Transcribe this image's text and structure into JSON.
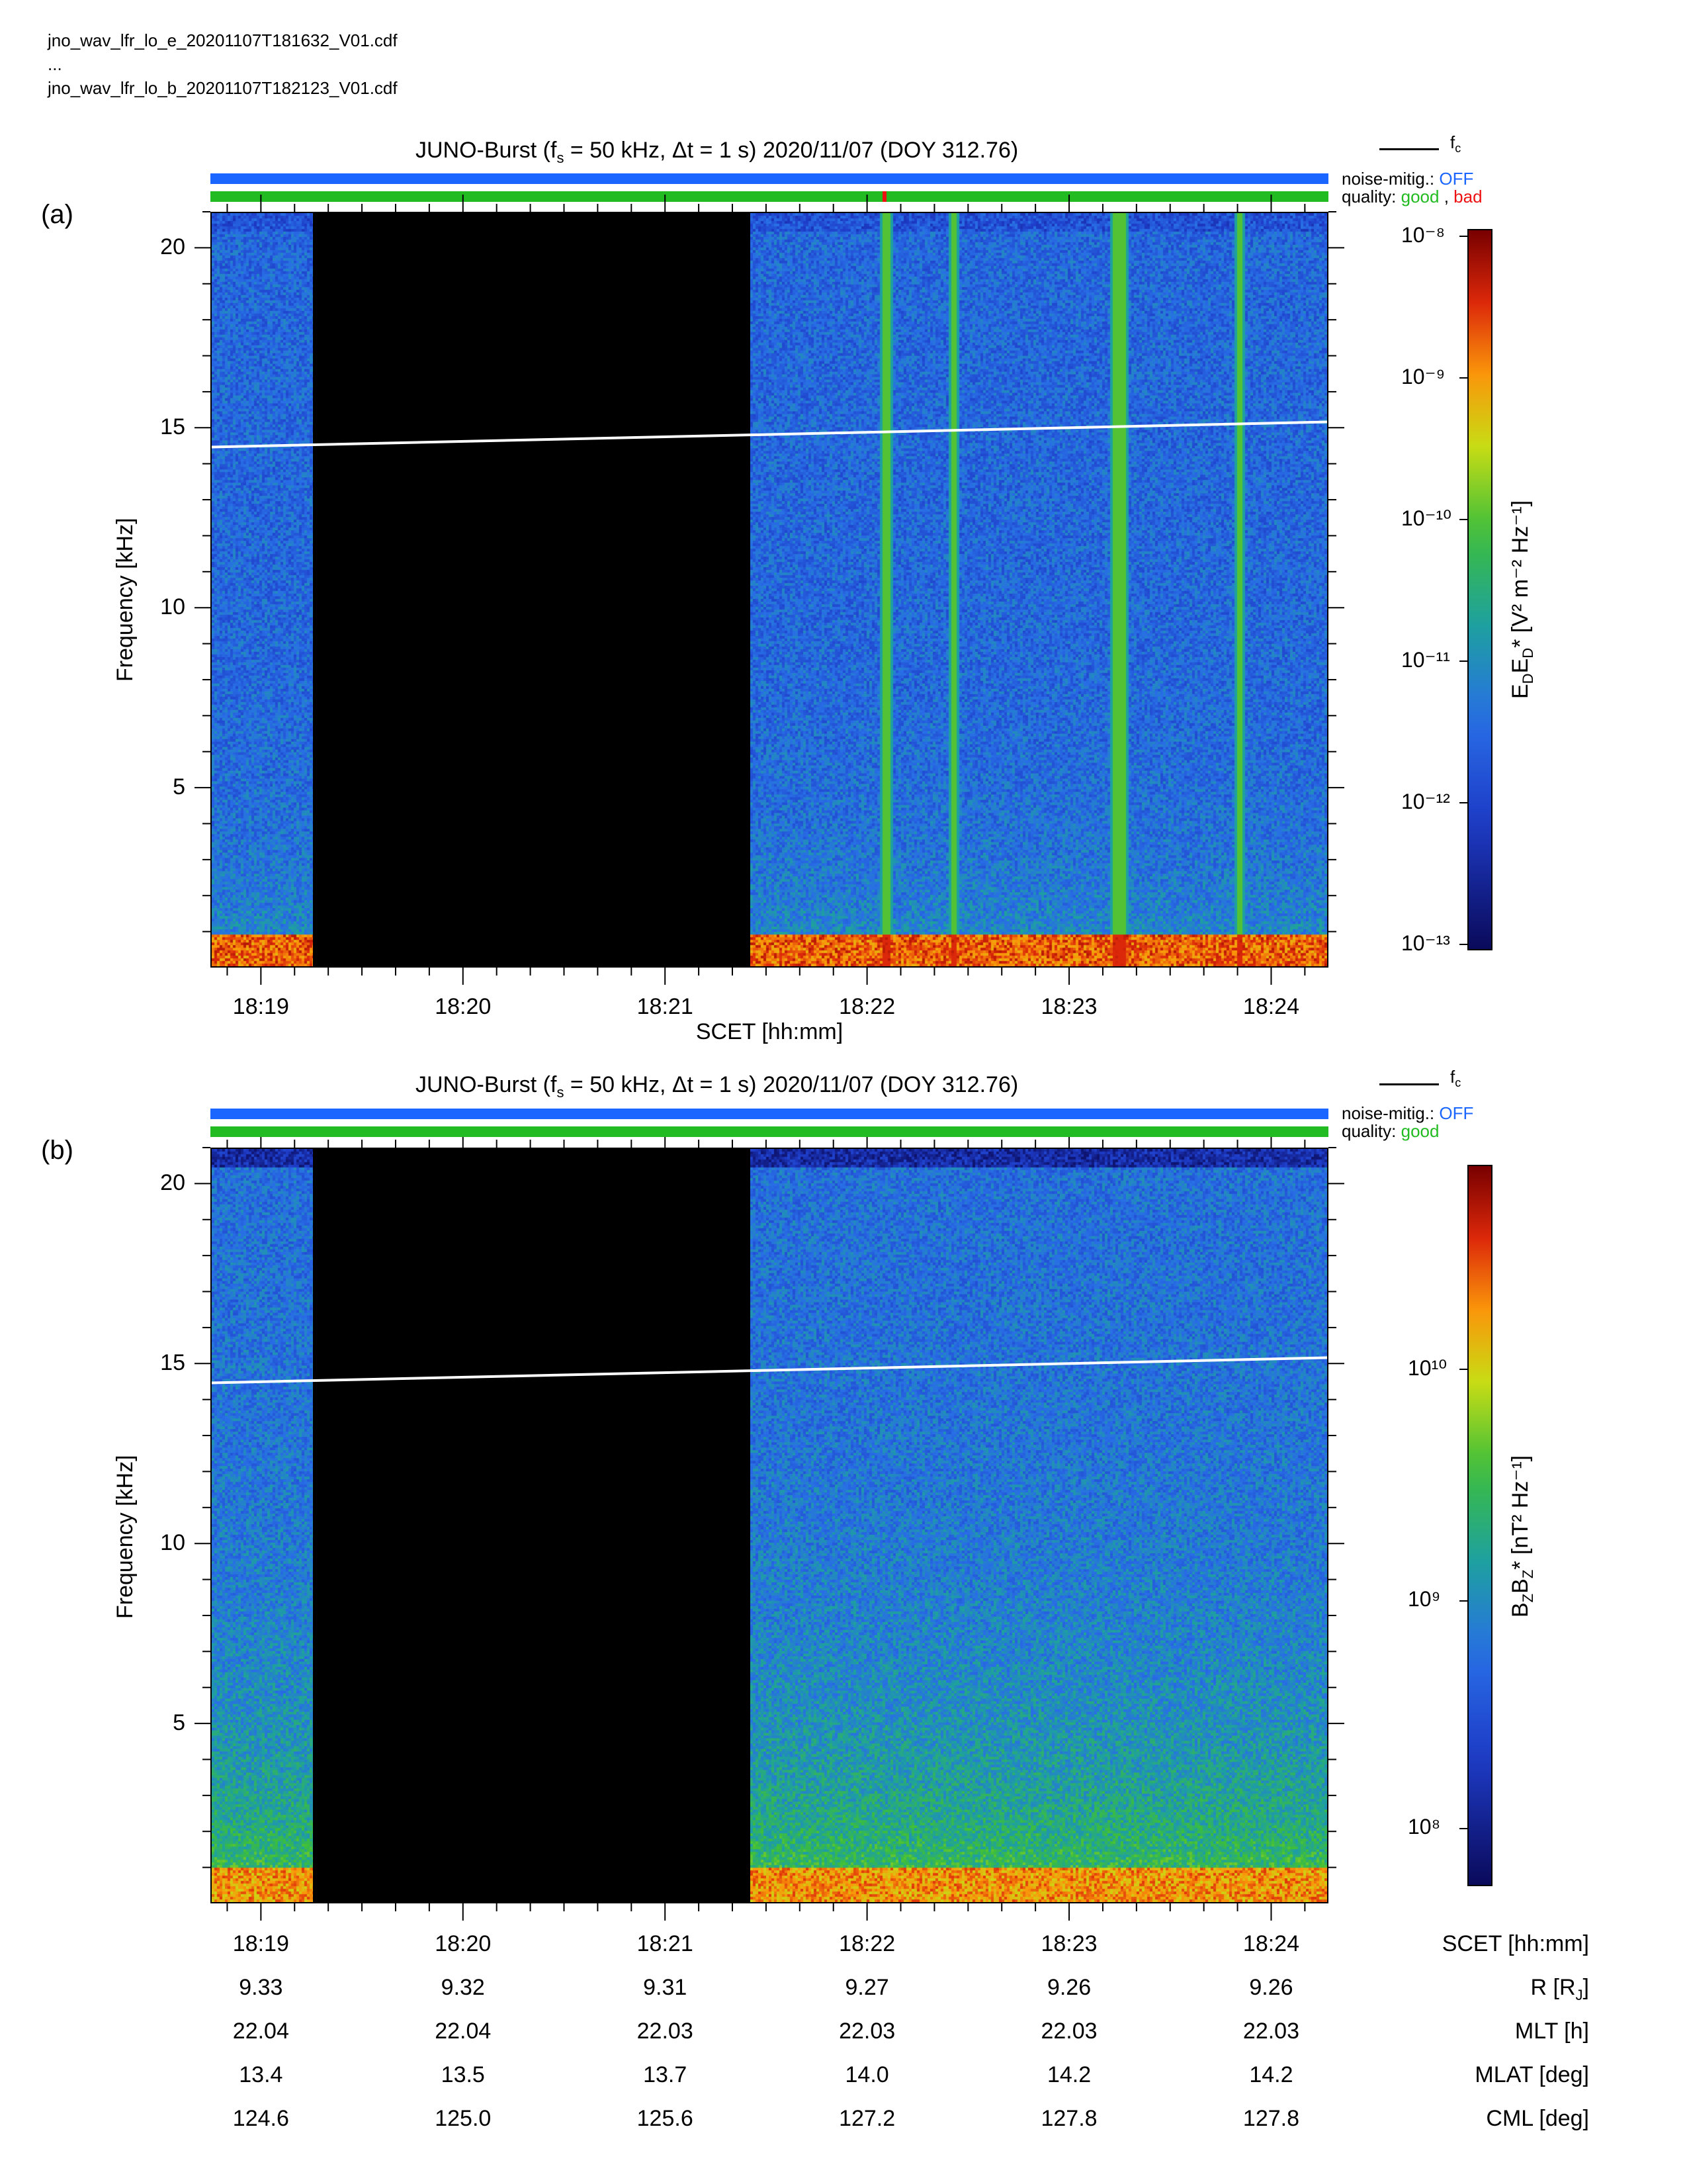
{
  "files": [
    "jno_wav_lfr_lo_e_20201107T181632_V01.cdf",
    "...",
    "jno_wav_lfr_lo_b_20201107T182123_V01.cdf"
  ],
  "panels": [
    {
      "label": "(a)",
      "title_main": "JUNO-Burst (f",
      "title_sub": "s",
      "title_rest": " = 50 kHz, Δt = 1 s)  2020/11/07 (DOY 312.76)",
      "legend_line": "f",
      "legend_sub": "c",
      "noise_label": "noise-mitig.:",
      "noise_value": "OFF",
      "quality_label": "quality:",
      "quality_good": "good",
      "quality_sep": ",",
      "quality_bad": "bad",
      "ylabel": "Frequency [kHz]",
      "xlabel": "SCET [hh:mm]",
      "cbar_label": "E",
      "cbar_unit_text": "[V² m⁻² Hz⁻¹]",
      "cbar_ticks": [
        "10⁻⁸",
        "10⁻⁹",
        "10⁻¹⁰",
        "10⁻¹¹",
        "10⁻¹²",
        "10⁻¹³"
      ]
    },
    {
      "label": "(b)",
      "title_main": "JUNO-Burst (f",
      "title_sub": "s",
      "title_rest": " = 50 kHz, Δt = 1 s)  2020/11/07 (DOY 312.76)",
      "legend_line": "f",
      "legend_sub": "c",
      "noise_label": "noise-mitig.:",
      "noise_value": "OFF",
      "quality_label": "quality:",
      "quality_good": "good",
      "ylabel": "Frequency [kHz]",
      "cbar_label": "B",
      "cbar_unit_text": "[nT² Hz⁻¹]",
      "cbar_ticks": [
        "10¹⁰",
        "10⁹",
        "10⁸"
      ]
    }
  ],
  "colors": {
    "noise_bar": "#1a66ff",
    "quality_good": "#22bb22",
    "quality_bad": "#ee1111",
    "fc_line": "#ffffff"
  },
  "chart_data": [
    {
      "type": "heatmap",
      "panel": "a",
      "x_tick_labels": [
        "18:19",
        "18:20",
        "18:21",
        "18:22",
        "18:23",
        "18:24"
      ],
      "x_time_range": [
        "18:18:45",
        "18:24:17"
      ],
      "y_ticks": [
        5,
        10,
        15,
        20
      ],
      "ylim": [
        0,
        21
      ],
      "data_gap": [
        "18:19:15",
        "18:21:25"
      ],
      "fc_line": {
        "start_khz": 14.5,
        "end_khz": 15.2
      },
      "narrowband_emissions_times": [
        "18:22:05",
        "18:22:25",
        "18:23:13",
        "18:23:15",
        "18:23:50"
      ],
      "color_scale": "log",
      "cbar_range": [
        1e-13,
        1e-08
      ]
    },
    {
      "type": "heatmap",
      "panel": "b",
      "x_tick_labels": [
        "18:19",
        "18:20",
        "18:21",
        "18:22",
        "18:23",
        "18:24"
      ],
      "x_time_range": [
        "18:18:45",
        "18:24:17"
      ],
      "y_ticks": [
        5,
        10,
        15,
        20
      ],
      "ylim": [
        0,
        21
      ],
      "data_gap": [
        "18:19:15",
        "18:21:25"
      ],
      "fc_line": {
        "start_khz": 14.5,
        "end_khz": 15.2
      },
      "color_scale": "log",
      "cbar_range": [
        60000000.0,
        70000000000.0
      ]
    }
  ],
  "ephemeris": {
    "rows": [
      {
        "label": "SCET [hh:mm]",
        "values": [
          "18:19",
          "18:20",
          "18:21",
          "18:22",
          "18:23",
          "18:24"
        ]
      },
      {
        "label": "R [R",
        "label_sub": "J",
        "label_end": "]",
        "values": [
          "9.33",
          "9.32",
          "9.31",
          "9.27",
          "9.26",
          "9.26"
        ]
      },
      {
        "label": "MLT [h]",
        "values": [
          "22.04",
          "22.04",
          "22.03",
          "22.03",
          "22.03",
          "22.03"
        ]
      },
      {
        "label": "MLAT [deg]",
        "values": [
          "13.4",
          "13.5",
          "13.7",
          "14.0",
          "14.2",
          "14.2"
        ]
      },
      {
        "label": "CML [deg]",
        "values": [
          "124.6",
          "125.0",
          "125.6",
          "127.2",
          "127.8",
          "127.8"
        ]
      }
    ]
  }
}
